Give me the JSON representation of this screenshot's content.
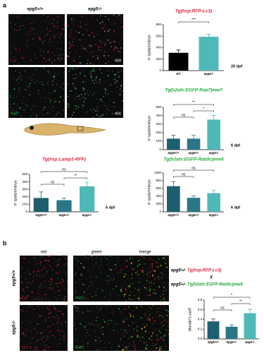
{
  "panel_a": {
    "label": "a",
    "col_headers": [
      "epg5+/+",
      "epg5-/-"
    ],
    "row_labels": [
      "Lc3",
      "Rab7"
    ],
    "magnification": "40X"
  },
  "panel_b": {
    "label": "b",
    "col_headers": [
      "red",
      "green",
      "merge"
    ],
    "row_headers": [
      "epg5+/+",
      "epg5-/-"
    ],
    "channel_labels": [
      "Lc3",
      "Rab5"
    ],
    "cross": {
      "line1_genotype": "epg5+/-",
      "line1_transgene": "Tg(hsp:RFP-Lc3)",
      "symbol": "X",
      "line2_genotype": "epg5+/-",
      "line2_transgene": "Tg(h2afx:EGFP-Rab5c)mw5"
    }
  },
  "chart_data": [
    {
      "type": "bar",
      "title": "Tg(hsp:RFP-Lc3)",
      "title_color": "#e0203a",
      "y_label": "nº spots/embryo",
      "note": "20 dpf",
      "categories": [
        "WT",
        "epg5-/-"
      ],
      "values": [
        310,
        590
      ],
      "errors": [
        50,
        45
      ],
      "colors": [
        "#000000",
        "#4fb9b8"
      ],
      "ylim": [
        0,
        800
      ],
      "yticks": [
        0,
        200,
        400,
        600,
        800
      ],
      "annotations": [
        {
          "text": "***",
          "from": 0,
          "to": 1
        }
      ]
    },
    {
      "type": "bar",
      "title": "Tg(h2afx:EGFP-Rab7)mw7",
      "title_color": "#1fa83a",
      "y_label": "nº spots/embryo",
      "note": "6 dpf",
      "categories": [
        "epg5+/+",
        "epg5+/-",
        "epg5-/-"
      ],
      "values": [
        130,
        130,
        355
      ],
      "errors": [
        40,
        40,
        50
      ],
      "colors": [
        "#1e5f6f",
        "#2b7686",
        "#4fb9b8"
      ],
      "ylim": [
        0,
        500
      ],
      "yticks": [
        0,
        100,
        200,
        300,
        400,
        500
      ],
      "annotations": [
        {
          "text": "**",
          "from": 0,
          "to": 2
        },
        {
          "text": "*",
          "from": 1,
          "to": 2
        },
        {
          "text": "ns",
          "from": 0,
          "to": 1
        }
      ]
    },
    {
      "type": "bar",
      "title": "Tg(hsp:Lamp1-RFP)",
      "title_color": "#e0203a",
      "y_label": "nº spots/embryo",
      "note": "6 dpf",
      "categories": [
        "epg5+/+",
        "epg5+/-",
        "epg5-/-"
      ],
      "values": [
        185,
        155,
        340
      ],
      "errors": [
        80,
        30,
        55
      ],
      "colors": [
        "#1e5f6f",
        "#2b7686",
        "#4fb9b8"
      ],
      "ylim": [
        0,
        500
      ],
      "yticks": [
        0,
        100,
        200,
        300,
        400,
        500
      ],
      "annotations": [
        {
          "text": "ns",
          "from": 0,
          "to": 2
        },
        {
          "text": "**",
          "from": 1,
          "to": 2
        },
        {
          "text": "ns",
          "from": 0,
          "to": 1
        }
      ]
    },
    {
      "type": "bar",
      "title": "Tg(h2afx:EGFP-Rab5c)mw5",
      "title_color": "#1fa83a",
      "y_label": "nº spots/embryo",
      "note": "6 dpf",
      "categories": [
        "epg5+/+",
        "epg5+/-",
        "epg5-/-"
      ],
      "values": [
        660,
        360,
        480
      ],
      "errors": [
        120,
        50,
        70
      ],
      "colors": [
        "#1e5f6f",
        "#2b7686",
        "#4fb9b8"
      ],
      "ylim": [
        0,
        1000
      ],
      "yticks": [
        0,
        200,
        400,
        600,
        800,
        1000
      ],
      "annotations": [
        {
          "text": "ns",
          "from": 0,
          "to": 2
        },
        {
          "text": "ns",
          "from": 0,
          "to": 1
        }
      ]
    },
    {
      "type": "bar",
      "y_label": "Mander's coeff",
      "categories": [
        "epg5+/+",
        "epg5+/-",
        "epg5-/-"
      ],
      "values": [
        0.36,
        0.25,
        0.53
      ],
      "errors": [
        0.05,
        0.04,
        0.08
      ],
      "colors": [
        "#1e5f6f",
        "#2b7686",
        "#4fb9b8"
      ],
      "ylim": [
        0,
        0.8
      ],
      "yticks": [
        {
          "value": 0,
          "label": "0.0"
        },
        {
          "value": 0.2,
          "label": "0.2"
        },
        {
          "value": 0.4,
          "label": "0.4"
        },
        {
          "value": 0.6,
          "label": "0.6"
        },
        {
          "value": 0.8,
          "label": "0.8"
        }
      ],
      "annotations": [
        {
          "text": "*",
          "from": 0,
          "to": 2
        },
        {
          "text": "**",
          "from": 1,
          "to": 2
        },
        {
          "text": "ns",
          "from": 0,
          "to": 1
        }
      ]
    }
  ]
}
